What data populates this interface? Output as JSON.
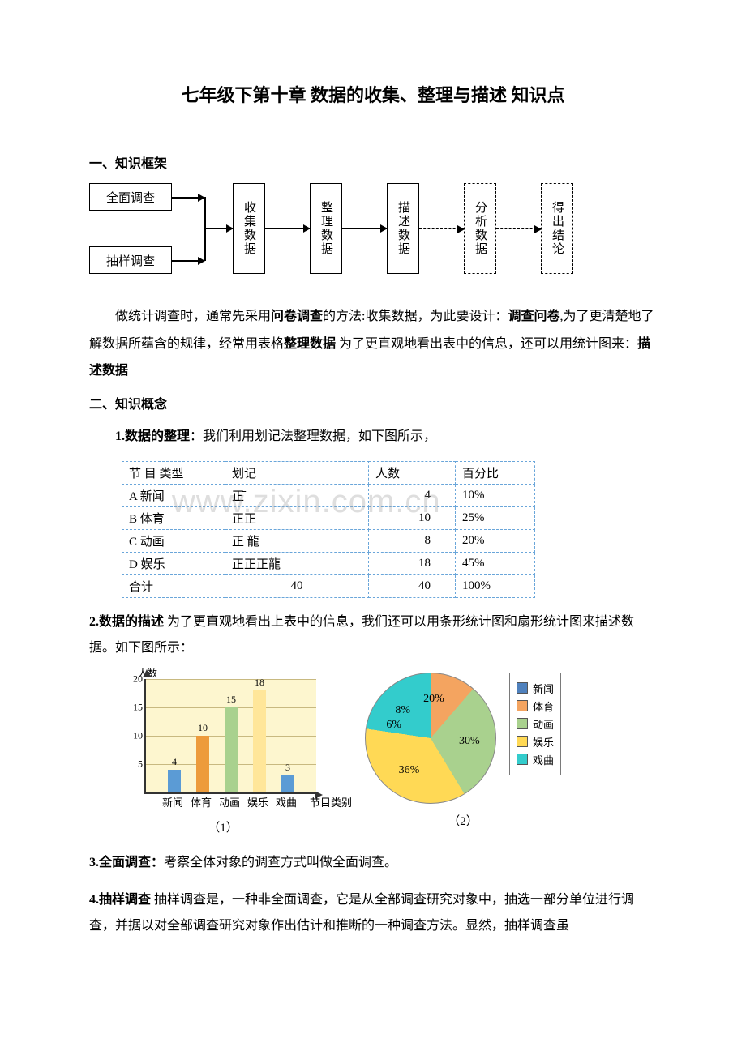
{
  "title": "七年级下第十章 数据的收集、整理与描述 知识点",
  "section1": "一、知识框架",
  "flow": {
    "boxes": {
      "full": "全面调查",
      "sample": "抽样调查",
      "collect": "收集数据",
      "sort": "整理数据",
      "describe": "描述数据",
      "analyze": "分析数据",
      "conclude": "得出结论"
    }
  },
  "para1_parts": {
    "t1": "做统计调查时，通常先采用",
    "b1": "问卷调查",
    "t2": "的方法:收集数据，为此要设计：",
    "b2": "调查问卷",
    "t3": ",为了更清楚地了解数据所蕴含的规律，经常用表格",
    "b3": "整理数据",
    "t4": " 为了更直观地看出表中的信息，还可以用统计图来：",
    "b4": "描述数据"
  },
  "section2": "二、知识概念",
  "item1": {
    "head": "1.数据的整理",
    "tail": "：我们利用划记法整理数据，如下图所示，"
  },
  "tallyTable": {
    "headers": [
      "节 目 类型",
      "划记",
      "人数",
      "百分比"
    ],
    "rows": [
      {
        "type": "A 新闻",
        "mark": "正̄",
        "count": "4",
        "pct": "10%"
      },
      {
        "type": "B 体育",
        "mark": "正正",
        "count": "10",
        "pct": "25%"
      },
      {
        "type": "C 动画",
        "mark": "正 ⿓",
        "count": "8",
        "pct": "20%"
      },
      {
        "type": "D 娱乐",
        "mark": "正正正⿓",
        "count": "18",
        "pct": "45%"
      },
      {
        "type": "合计",
        "mark": "40",
        "count": "40",
        "pct": "100%"
      }
    ]
  },
  "watermark": "www.zixin.com.cn",
  "item2": {
    "head": "2.数据的描述",
    "tail": " 为了更直观地看出上表中的信息，我们还可以用条形统计图和扇形统计图来描述数据。如下图所示："
  },
  "barChart": {
    "type": "bar",
    "categories": [
      "新闻",
      "体育",
      "动画",
      "娱乐",
      "戏曲"
    ],
    "values": [
      4,
      10,
      15,
      18,
      3
    ],
    "colors": [
      "#5b9bd5",
      "#ed9b3b",
      "#a9d18e",
      "#ffe699",
      "#5b9bd5"
    ],
    "ylabel": "人数",
    "xlabel": "节目类别",
    "ylim": [
      0,
      20
    ],
    "yticks": [
      5,
      10,
      15,
      20
    ],
    "plot_background": "#fdf6cf",
    "grid_color": "#c8b980",
    "caption": "（1）"
  },
  "pieChart": {
    "type": "pie",
    "slices": [
      {
        "label": "新闻",
        "pct": 8,
        "color": "#4f81bd",
        "textcolor": "#000"
      },
      {
        "label": "体育",
        "pct": 20,
        "color": "#f4a460",
        "textcolor": "#000"
      },
      {
        "label": "动画",
        "pct": 30,
        "color": "#a9d18e",
        "textcolor": "#000"
      },
      {
        "label": "娱乐",
        "pct": 36,
        "color": "#ffd955",
        "textcolor": "#000"
      },
      {
        "label": "戏曲",
        "pct": 6,
        "color": "#33cccc",
        "textcolor": "#000"
      }
    ],
    "caption": "（2）"
  },
  "item3": {
    "head": "3.全面调查：",
    "tail": "考察全体对象的调查方式叫做全面调查。"
  },
  "item4": {
    "head": "4.抽样调查",
    "tail": " 抽样调查是，一种非全面调查，它是从全部调查研究对象中，抽选一部分单位进行调查，并据以对全部调查研究对象作出估计和推断的一种调查方法。显然，抽样调查虽"
  }
}
